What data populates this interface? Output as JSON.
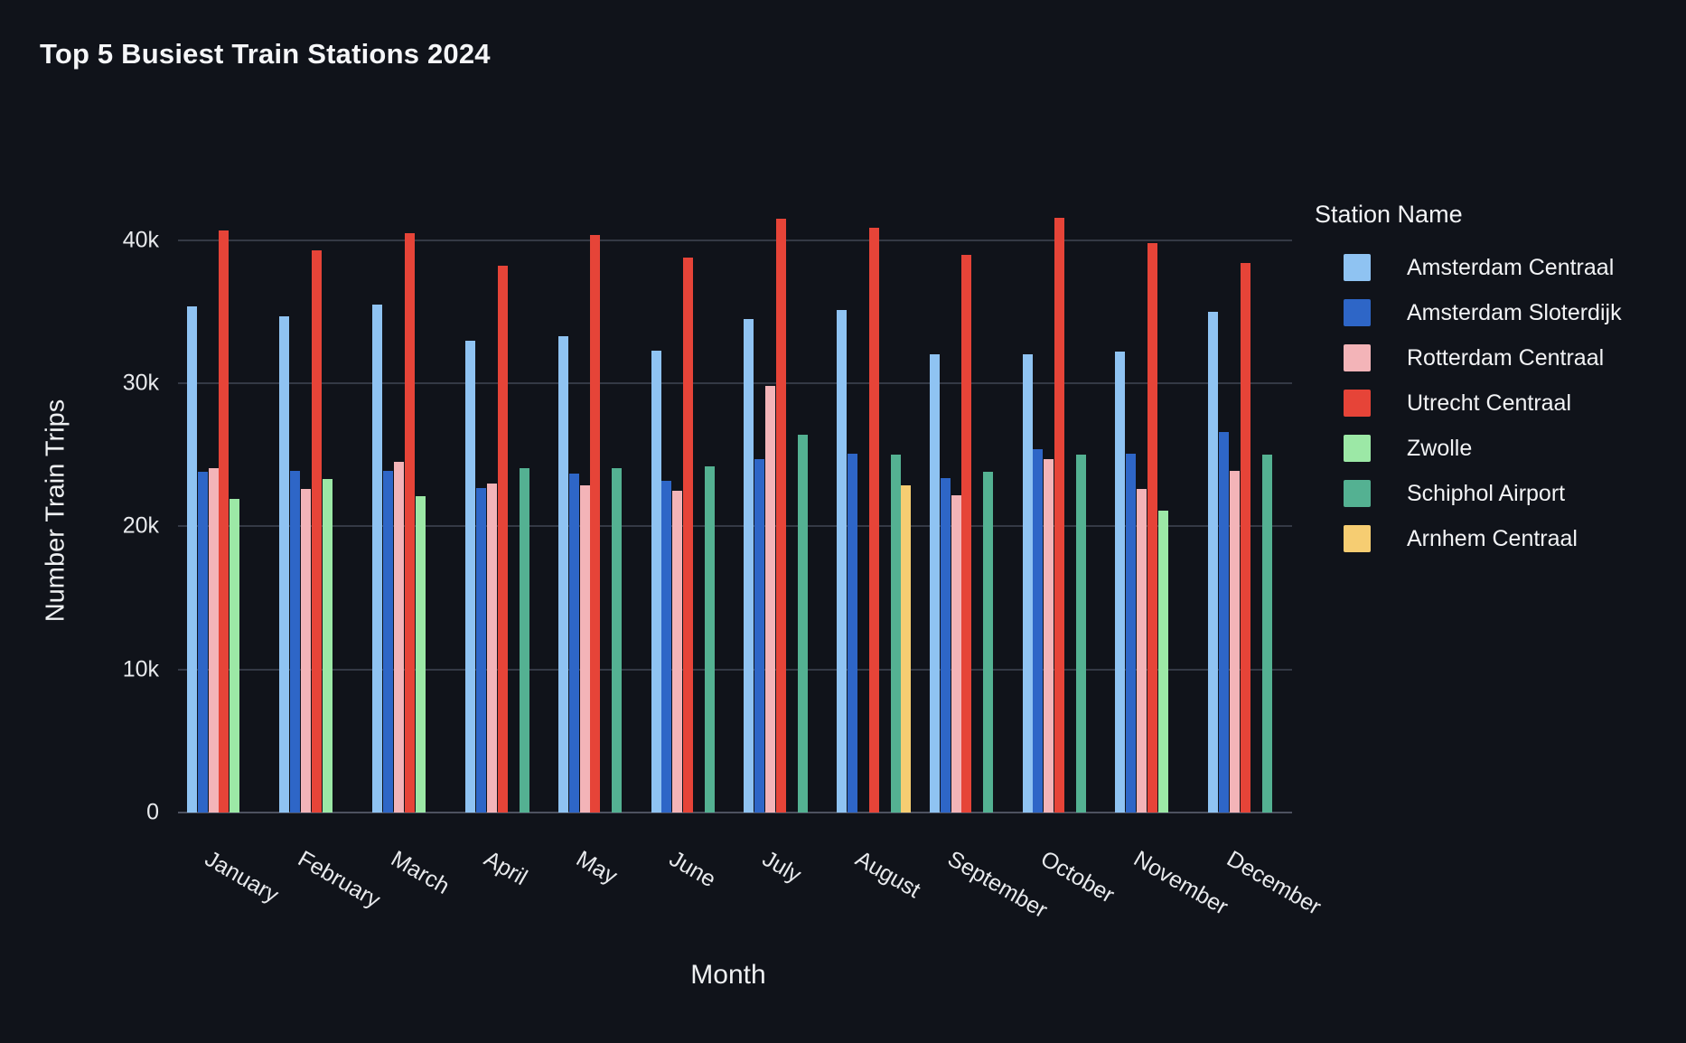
{
  "title": "Top 5 Busiest Train Stations 2024",
  "colors": {
    "background": "#10131a",
    "gridline": "#343945",
    "axis_line": "#4d5260",
    "text": "#f2f3f5",
    "tick_text": "#e8eaed"
  },
  "chart_data": {
    "type": "bar",
    "title": "Top 5 Busiest Train Stations 2024",
    "xlabel": "Month",
    "ylabel": "Number Train Trips",
    "legend_title": "Station Name",
    "legend_position": "right",
    "grid": true,
    "ylim": [
      0,
      42500
    ],
    "yticks": [
      {
        "value": 0,
        "label": "0"
      },
      {
        "value": 10000,
        "label": "10k"
      },
      {
        "value": 20000,
        "label": "20k"
      },
      {
        "value": 30000,
        "label": "30k"
      },
      {
        "value": 40000,
        "label": "40k"
      }
    ],
    "categories": [
      "January",
      "February",
      "March",
      "April",
      "May",
      "June",
      "July",
      "August",
      "September",
      "October",
      "November",
      "December"
    ],
    "series": [
      {
        "name": "Amsterdam Centraal",
        "color": "#8fc3f2",
        "values": [
          35400,
          34700,
          35500,
          33000,
          33300,
          32300,
          34500,
          35100,
          32000,
          32000,
          32200,
          35000
        ]
      },
      {
        "name": "Amsterdam Sloterdijk",
        "color": "#2e66c7",
        "values": [
          23800,
          23900,
          23900,
          22700,
          23700,
          23200,
          24700,
          25100,
          23400,
          25400,
          25100,
          26600
        ]
      },
      {
        "name": "Rotterdam Centraal",
        "color": "#f3b4b8",
        "values": [
          24100,
          22600,
          24500,
          23000,
          22900,
          22500,
          29800,
          null,
          22200,
          24700,
          22600,
          23900
        ]
      },
      {
        "name": "Utrecht Centraal",
        "color": "#e64438",
        "values": [
          40700,
          39300,
          40500,
          38200,
          40400,
          38800,
          41500,
          40900,
          39000,
          41600,
          39800,
          38400
        ]
      },
      {
        "name": "Zwolle",
        "color": "#9ce8a6",
        "values": [
          21900,
          23300,
          22100,
          null,
          null,
          null,
          null,
          null,
          null,
          null,
          21100,
          null
        ]
      },
      {
        "name": "Schiphol Airport",
        "color": "#54b192",
        "values": [
          null,
          null,
          null,
          24100,
          24100,
          24200,
          26400,
          25000,
          23800,
          25000,
          null,
          25000
        ]
      },
      {
        "name": "Arnhem Centraal",
        "color": "#f6cd72",
        "values": [
          null,
          null,
          null,
          null,
          null,
          null,
          null,
          22900,
          null,
          null,
          null,
          null
        ]
      }
    ]
  }
}
